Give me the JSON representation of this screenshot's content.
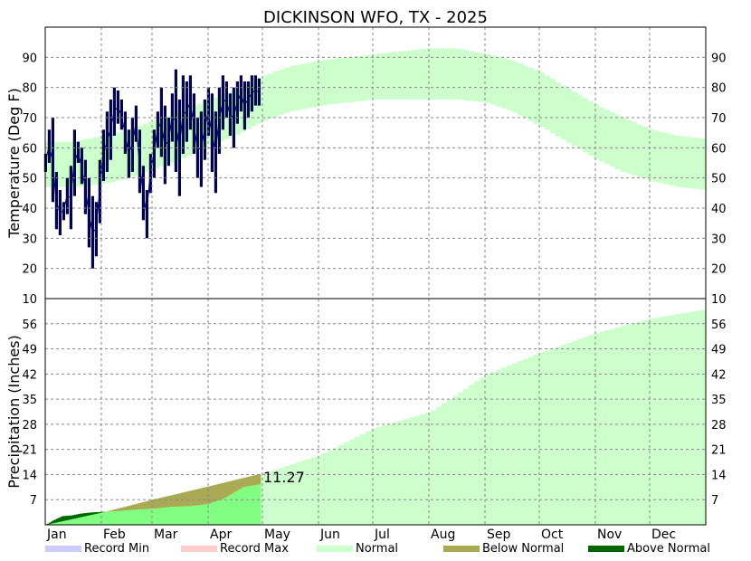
{
  "chart_data": {
    "type": "area",
    "title": "DICKINSON  WFO, TX - 2025",
    "months": [
      "Jan",
      "Feb",
      "Mar",
      "Apr",
      "May",
      "Jun",
      "Jul",
      "Aug",
      "Sep",
      "Oct",
      "Nov",
      "Dec"
    ],
    "month_start_days": [
      1,
      32,
      60,
      91,
      121,
      152,
      182,
      213,
      244,
      274,
      305,
      335
    ],
    "days_in_year": 365,
    "grid": true,
    "temperature": {
      "ylabel": "Temperature (Deg F)",
      "ylim": [
        10,
        100
      ],
      "ticks": [
        10,
        20,
        30,
        40,
        50,
        60,
        70,
        80,
        90
      ],
      "normal_band": {
        "days": [
          1,
          15,
          32,
          46,
          60,
          74,
          91,
          105,
          121,
          135,
          152,
          166,
          182,
          196,
          213,
          227,
          244,
          258,
          274,
          288,
          305,
          319,
          335,
          349,
          365
        ],
        "low": [
          47,
          47,
          48,
          50,
          53,
          56,
          61,
          64,
          69,
          72,
          74,
          75,
          76,
          76,
          76,
          76,
          75,
          72,
          67,
          62,
          56,
          52,
          49,
          47,
          46
        ],
        "high": [
          62,
          62,
          64,
          66,
          69,
          72,
          76,
          79,
          84,
          87,
          89,
          90,
          91,
          92,
          93,
          93,
          91,
          89,
          85,
          80,
          74,
          70,
          66,
          64,
          63
        ]
      },
      "observed": {
        "days": [
          1,
          3,
          5,
          7,
          9,
          11,
          13,
          15,
          17,
          19,
          21,
          23,
          25,
          27,
          29,
          31,
          33,
          35,
          37,
          39,
          41,
          43,
          45,
          47,
          49,
          51,
          53,
          55,
          57,
          59,
          61,
          63,
          65,
          67,
          69,
          71,
          73,
          75,
          77,
          79,
          81,
          83,
          85,
          87,
          89,
          91,
          93,
          95,
          97,
          99,
          101,
          103,
          105,
          107,
          109,
          111,
          113,
          115,
          117,
          119
        ],
        "low": [
          52,
          55,
          42,
          33,
          31,
          36,
          38,
          33,
          44,
          55,
          48,
          38,
          27,
          20,
          24,
          35,
          49,
          52,
          56,
          64,
          68,
          66,
          58,
          50,
          52,
          62,
          45,
          36,
          30,
          45,
          50,
          60,
          57,
          48,
          54,
          62,
          52,
          44,
          58,
          62,
          66,
          58,
          50,
          47,
          56,
          64,
          52,
          45,
          58,
          66,
          70,
          64,
          60,
          68,
          72,
          66,
          70,
          72,
          74,
          74
        ],
        "high": [
          58,
          66,
          70,
          52,
          46,
          42,
          50,
          54,
          66,
          62,
          60,
          56,
          50,
          44,
          42,
          56,
          66,
          72,
          76,
          80,
          79,
          76,
          72,
          66,
          70,
          74,
          66,
          54,
          46,
          58,
          66,
          72,
          80,
          74,
          70,
          78,
          86,
          76,
          84,
          82,
          84,
          78,
          70,
          72,
          76,
          80,
          78,
          72,
          80,
          84,
          82,
          78,
          80,
          82,
          84,
          82,
          82,
          84,
          84,
          83
        ]
      }
    },
    "precipitation": {
      "ylabel": "Precipitation (Inches)",
      "ylim": [
        0,
        63
      ],
      "ticks": [
        7,
        14,
        21,
        28,
        35,
        42,
        49,
        56
      ],
      "normal_cumulative": {
        "days": [
          1,
          32,
          60,
          91,
          121,
          152,
          182,
          213,
          244,
          274,
          305,
          335,
          365
        ],
        "values": [
          0,
          3.4,
          7,
          10.7,
          14.4,
          19.5,
          27,
          31.5,
          42,
          48,
          53.5,
          57.5,
          60
        ]
      },
      "observed_cumulative": {
        "days": [
          1,
          5,
          10,
          15,
          20,
          25,
          32,
          40,
          50,
          60,
          70,
          80,
          91,
          100,
          110,
          119
        ],
        "values": [
          0,
          1.2,
          2.4,
          2.6,
          3.1,
          3.4,
          3.6,
          3.8,
          4.2,
          4.5,
          5.0,
          5.2,
          5.8,
          7.5,
          10.5,
          11.27
        ]
      },
      "annotation": "11.27"
    },
    "legend": [
      {
        "label": "Record Min",
        "color": "#ccccff"
      },
      {
        "label": "Record Max",
        "color": "#ffcccc"
      },
      {
        "label": "Normal",
        "color": "#ccffcc"
      },
      {
        "label": "Below Normal",
        "color": "#aaaa55"
      },
      {
        "label": "Above Normal",
        "color": "#006600"
      }
    ],
    "colors": {
      "normal": "#ccffcc",
      "observed_temp": "#000066",
      "precip_observed": "#80ff80",
      "below_normal": "#aaaa55",
      "above_normal": "#006600"
    }
  }
}
